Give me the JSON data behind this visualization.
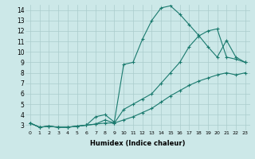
{
  "xlabel": "Humidex (Indice chaleur)",
  "background_color": "#cce8e8",
  "grid_color": "#aacccc",
  "line_color": "#1a7a6e",
  "xlim": [
    -0.5,
    23.5
  ],
  "ylim": [
    2.5,
    14.5
  ],
  "xticks": [
    0,
    1,
    2,
    3,
    4,
    5,
    6,
    7,
    8,
    9,
    10,
    11,
    12,
    13,
    14,
    15,
    16,
    17,
    18,
    19,
    20,
    21,
    22,
    23
  ],
  "yticks": [
    3,
    4,
    5,
    6,
    7,
    8,
    9,
    10,
    11,
    12,
    13,
    14
  ],
  "series1_x": [
    0,
    1,
    2,
    3,
    4,
    5,
    6,
    7,
    8,
    9,
    10,
    11,
    12,
    13,
    14,
    15,
    16,
    17,
    18,
    19,
    20,
    21,
    22,
    23
  ],
  "series1_y": [
    3.2,
    2.8,
    2.9,
    2.8,
    2.8,
    2.9,
    3.0,
    3.1,
    3.2,
    3.2,
    3.5,
    3.8,
    4.2,
    4.6,
    5.2,
    5.8,
    6.3,
    6.8,
    7.2,
    7.5,
    7.8,
    8.0,
    7.8,
    8.0
  ],
  "series2_x": [
    0,
    1,
    2,
    3,
    4,
    5,
    6,
    7,
    8,
    9,
    10,
    11,
    12,
    13,
    14,
    15,
    16,
    17,
    18,
    19,
    20,
    21,
    22,
    23
  ],
  "series2_y": [
    3.2,
    2.8,
    2.9,
    2.8,
    2.8,
    2.9,
    3.0,
    3.8,
    4.0,
    3.3,
    8.8,
    9.0,
    11.2,
    13.0,
    14.2,
    14.4,
    13.6,
    12.6,
    11.6,
    10.5,
    9.5,
    11.1,
    9.5,
    9.0
  ],
  "series3_x": [
    0,
    1,
    2,
    3,
    4,
    5,
    6,
    7,
    8,
    9,
    10,
    11,
    12,
    13,
    14,
    15,
    16,
    17,
    18,
    19,
    20,
    21,
    22,
    23
  ],
  "series3_y": [
    3.2,
    2.8,
    2.9,
    2.8,
    2.8,
    2.9,
    3.0,
    3.1,
    3.5,
    3.2,
    4.5,
    5.0,
    5.5,
    6.0,
    7.0,
    8.0,
    9.0,
    10.5,
    11.5,
    12.0,
    12.2,
    9.5,
    9.3,
    9.0
  ]
}
